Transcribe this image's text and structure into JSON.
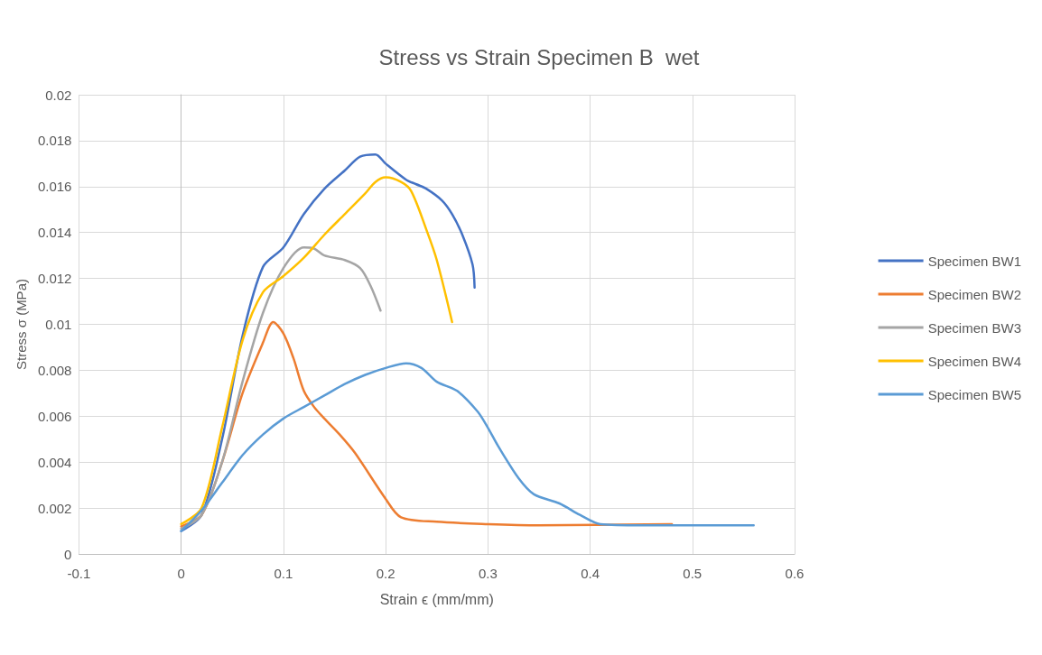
{
  "chart_data": {
    "type": "line",
    "title": "Stress vs Strain Specimen B  wet",
    "xlabel": "Strain ϵ (mm/mm)",
    "ylabel": "Stress σ (MPa)",
    "xlim": [
      -0.1,
      0.6
    ],
    "xticks": [
      -0.1,
      0,
      0.1,
      0.2,
      0.3,
      0.4,
      0.5,
      0.6
    ],
    "ylim": [
      0,
      0.02
    ],
    "yticks": [
      0,
      0.002,
      0.004,
      0.006,
      0.008,
      0.01,
      0.012,
      0.014,
      0.016,
      0.018,
      0.02
    ],
    "grid": true,
    "legend": "right",
    "marker": "none",
    "line_style": "solid",
    "series": [
      {
        "name": "Specimen BW1",
        "color": "#4472c4",
        "x": [
          0,
          0.02,
          0.04,
          0.06,
          0.08,
          0.1,
          0.12,
          0.14,
          0.16,
          0.175,
          0.19,
          0.2,
          0.22,
          0.23,
          0.24,
          0.255,
          0.265,
          0.275,
          0.285,
          0.287
        ],
        "values": [
          0.001,
          0.0017,
          0.005,
          0.0095,
          0.0125,
          0.01335,
          0.0148,
          0.0159,
          0.0167,
          0.0173,
          0.0174,
          0.017,
          0.0163,
          0.0161,
          0.0159,
          0.0154,
          0.0148,
          0.0139,
          0.0126,
          0.0116
        ]
      },
      {
        "name": "Specimen BW2",
        "color": "#ed7d31",
        "x": [
          0,
          0.02,
          0.04,
          0.06,
          0.08,
          0.09,
          0.1,
          0.11,
          0.12,
          0.13,
          0.14,
          0.155,
          0.17,
          0.2,
          0.215,
          0.25,
          0.3,
          0.35,
          0.48
        ],
        "values": [
          0.0012,
          0.0017,
          0.004,
          0.007,
          0.0092,
          0.0101,
          0.0096,
          0.0085,
          0.0071,
          0.0064,
          0.0059,
          0.0052,
          0.0044,
          0.0024,
          0.0016,
          0.0014,
          0.0013,
          0.00125,
          0.0013
        ]
      },
      {
        "name": "Specimen BW3",
        "color": "#a5a5a5",
        "x": [
          0,
          0.02,
          0.04,
          0.06,
          0.08,
          0.1,
          0.12,
          0.13,
          0.14,
          0.16,
          0.175,
          0.185,
          0.195
        ],
        "values": [
          0.0011,
          0.0017,
          0.004,
          0.0075,
          0.0105,
          0.01245,
          0.01335,
          0.0133,
          0.013,
          0.0128,
          0.01245,
          0.0117,
          0.0106
        ]
      },
      {
        "name": "Specimen BW4",
        "color": "#ffc000",
        "x": [
          0,
          0.02,
          0.04,
          0.06,
          0.08,
          0.1,
          0.12,
          0.14,
          0.16,
          0.18,
          0.19,
          0.2,
          0.215,
          0.225,
          0.24,
          0.25,
          0.265
        ],
        "values": [
          0.0013,
          0.002,
          0.0055,
          0.0093,
          0.0114,
          0.0121,
          0.0129,
          0.0139,
          0.0148,
          0.0157,
          0.0162,
          0.0164,
          0.0162,
          0.0158,
          0.0141,
          0.0128,
          0.0101
        ]
      },
      {
        "name": "Specimen BW5",
        "color": "#5b9bd5",
        "x": [
          0,
          0.02,
          0.04,
          0.06,
          0.08,
          0.1,
          0.12,
          0.14,
          0.16,
          0.18,
          0.2,
          0.22,
          0.235,
          0.25,
          0.27,
          0.29,
          0.3,
          0.31,
          0.33,
          0.345,
          0.37,
          0.39,
          0.41,
          0.45,
          0.5,
          0.56
        ],
        "values": [
          0.001,
          0.0019,
          0.0031,
          0.0043,
          0.0052,
          0.0059,
          0.0064,
          0.0069,
          0.0074,
          0.0078,
          0.0081,
          0.0083,
          0.0081,
          0.0075,
          0.0071,
          0.0062,
          0.0055,
          0.0047,
          0.0033,
          0.0026,
          0.0022,
          0.0017,
          0.0013,
          0.00125,
          0.00125,
          0.00125
        ]
      }
    ]
  }
}
